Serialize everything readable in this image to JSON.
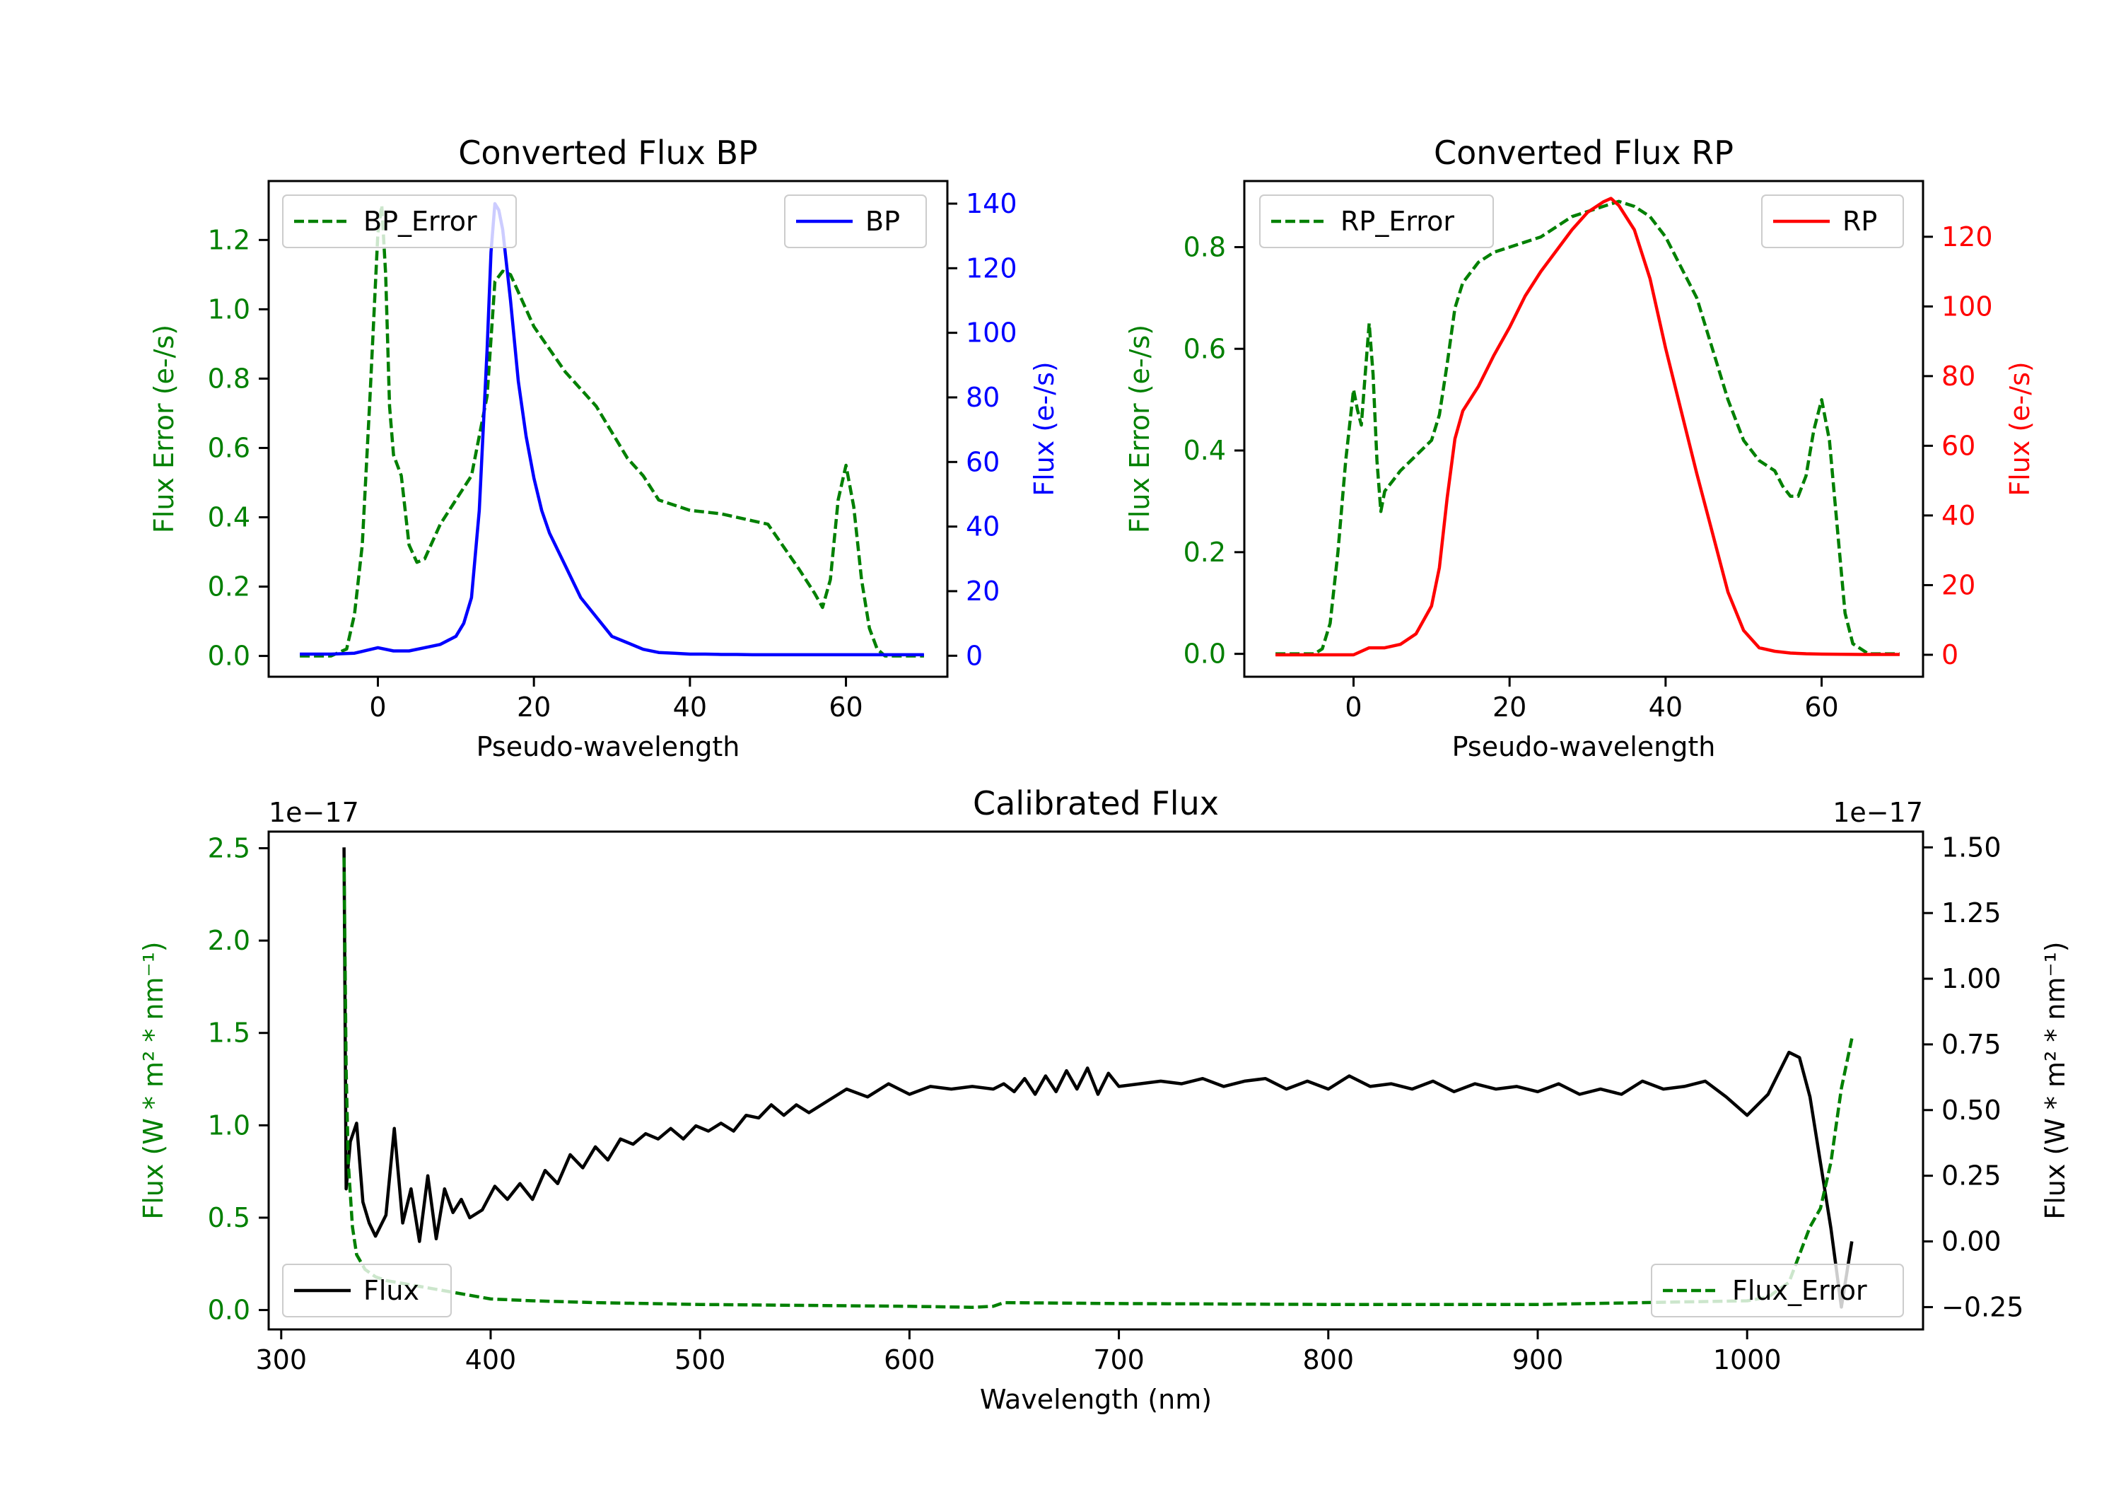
{
  "colors": {
    "green": "#008000",
    "blue": "#0000ff",
    "red": "#ff0000",
    "black": "#000000",
    "axis": "#000000"
  },
  "chart_data": [
    {
      "id": "bp",
      "type": "line",
      "title": "Converted Flux BP",
      "xlabel": "Pseudo-wavelength",
      "ylabel_left": "Flux Error (e-/s)",
      "ylabel_right": "Flux (e-/s)",
      "xlim": [
        -14,
        73
      ],
      "ylim_left": [
        -0.06,
        1.37
      ],
      "ylim_right": [
        -6.5,
        147
      ],
      "xticks": [
        0,
        20,
        40,
        60
      ],
      "yticks_left": [
        "0.0",
        "0.2",
        "0.4",
        "0.6",
        "0.8",
        "1.0",
        "1.2"
      ],
      "yticks_right": [
        "0",
        "20",
        "40",
        "60",
        "80",
        "100",
        "120",
        "140"
      ],
      "legend_left": "BP_Error",
      "legend_right": "BP",
      "series": [
        {
          "name": "BP_Error",
          "axis": "left",
          "style": "dashed",
          "color": "#008000",
          "x": [
            -10,
            -6,
            -4,
            -3,
            -2,
            -1,
            0,
            0.5,
            1,
            1.5,
            2,
            3,
            4,
            5,
            6,
            8,
            10,
            12,
            14,
            15,
            16,
            17,
            18,
            20,
            24,
            28,
            32,
            34,
            36,
            40,
            44,
            48,
            50,
            54,
            56,
            57,
            58,
            59,
            60,
            61,
            62,
            63,
            64,
            65,
            66,
            68,
            70
          ],
          "y": [
            0.0,
            0.0,
            0.02,
            0.12,
            0.32,
            0.75,
            1.22,
            1.3,
            1.1,
            0.72,
            0.58,
            0.52,
            0.32,
            0.27,
            0.28,
            0.38,
            0.45,
            0.52,
            0.75,
            1.08,
            1.11,
            1.1,
            1.05,
            0.95,
            0.82,
            0.72,
            0.57,
            0.52,
            0.45,
            0.42,
            0.41,
            0.39,
            0.38,
            0.25,
            0.18,
            0.14,
            0.22,
            0.45,
            0.55,
            0.43,
            0.22,
            0.08,
            0.02,
            0.0,
            0.0,
            0.0,
            0.0
          ]
        },
        {
          "name": "BP",
          "axis": "right",
          "style": "solid",
          "color": "#0000ff",
          "x": [
            -10,
            -6,
            -3,
            0,
            2,
            4,
            6,
            8,
            10,
            11,
            12,
            13,
            14,
            14.5,
            15,
            15.5,
            16,
            17,
            18,
            19,
            20,
            21,
            22,
            24,
            26,
            28,
            30,
            32,
            34,
            36,
            38,
            40,
            42,
            44,
            46,
            48,
            50,
            55,
            60,
            65,
            70
          ],
          "y": [
            0.5,
            0.5,
            0.8,
            2.5,
            1.5,
            1.5,
            2.5,
            3.5,
            6,
            10,
            18,
            45,
            95,
            125,
            140,
            138,
            132,
            110,
            85,
            68,
            55,
            45,
            38,
            28,
            18,
            12,
            6,
            4,
            2,
            1,
            0.8,
            0.5,
            0.5,
            0.4,
            0.4,
            0.3,
            0.3,
            0.3,
            0.3,
            0.3,
            0.3
          ]
        }
      ]
    },
    {
      "id": "rp",
      "type": "line",
      "title": "Converted Flux RP",
      "xlabel": "Pseudo-wavelength",
      "ylabel_left": "Flux Error (e-/s)",
      "ylabel_right": "Flux (e-/s)",
      "xlim": [
        -14,
        73
      ],
      "ylim_left": [
        -0.045,
        0.93
      ],
      "ylim_right": [
        -6.3,
        136
      ],
      "xticks": [
        0,
        20,
        40,
        60
      ],
      "yticks_left": [
        "0.0",
        "0.2",
        "0.4",
        "0.6",
        "0.8"
      ],
      "yticks_right": [
        "0",
        "20",
        "40",
        "60",
        "80",
        "100",
        "120"
      ],
      "legend_left": "RP_Error",
      "legend_right": "RP",
      "series": [
        {
          "name": "RP_Error",
          "axis": "left",
          "style": "dashed",
          "color": "#008000",
          "x": [
            -10,
            -5,
            -4,
            -3,
            -2,
            -1,
            0,
            0.5,
            1,
            1.5,
            2,
            2.5,
            3,
            3.5,
            4,
            5,
            6,
            8,
            10,
            11,
            12,
            13,
            14,
            16,
            18,
            20,
            22,
            24,
            26,
            28,
            30,
            32,
            34,
            36,
            38,
            40,
            42,
            44,
            46,
            48,
            50,
            52,
            54,
            55,
            56,
            57,
            58,
            59,
            60,
            61,
            62,
            63,
            64,
            66,
            68,
            70
          ],
          "y": [
            0.0,
            0.0,
            0.01,
            0.06,
            0.2,
            0.38,
            0.52,
            0.48,
            0.45,
            0.55,
            0.65,
            0.55,
            0.38,
            0.28,
            0.32,
            0.34,
            0.36,
            0.39,
            0.42,
            0.47,
            0.57,
            0.68,
            0.73,
            0.77,
            0.79,
            0.8,
            0.81,
            0.82,
            0.84,
            0.86,
            0.87,
            0.88,
            0.89,
            0.88,
            0.86,
            0.82,
            0.76,
            0.7,
            0.6,
            0.5,
            0.42,
            0.38,
            0.36,
            0.33,
            0.31,
            0.31,
            0.35,
            0.44,
            0.5,
            0.42,
            0.25,
            0.08,
            0.02,
            0.0,
            0.0,
            0.0
          ]
        },
        {
          "name": "RP",
          "axis": "right",
          "style": "solid",
          "color": "#ff0000",
          "x": [
            -10,
            -4,
            0,
            2,
            4,
            6,
            8,
            10,
            11,
            12,
            13,
            14,
            16,
            18,
            20,
            22,
            24,
            26,
            28,
            30,
            32,
            33,
            34,
            36,
            38,
            40,
            42,
            44,
            46,
            48,
            50,
            52,
            54,
            56,
            58,
            60,
            65,
            70
          ],
          "y": [
            0,
            0,
            0,
            2,
            2,
            3,
            6,
            14,
            25,
            45,
            62,
            70,
            77,
            86,
            94,
            103,
            110,
            116,
            122,
            127,
            130,
            131,
            129,
            122,
            108,
            88,
            70,
            52,
            35,
            18,
            7,
            2,
            1,
            0.5,
            0.3,
            0.2,
            0.1,
            0.1
          ]
        }
      ]
    },
    {
      "id": "calibrated",
      "type": "line",
      "title": "Calibrated Flux",
      "xlabel": "Wavelength (nm)",
      "ylabel_left": "Flux (W * m² * nm⁻¹)",
      "ylabel_right": "Flux (W * m² * nm⁻¹)",
      "offset_left": "1e−17",
      "offset_right": "1e−17",
      "xlim": [
        294,
        1084
      ],
      "ylim_left": [
        -0.105,
        2.59
      ],
      "ylim_right": [
        -0.335,
        1.56
      ],
      "xticks": [
        300,
        400,
        500,
        600,
        700,
        800,
        900,
        1000
      ],
      "yticks_left": [
        "0.0",
        "0.5",
        "1.0",
        "1.5",
        "2.0",
        "2.5"
      ],
      "yticks_right": [
        "−0.25",
        "0.00",
        "0.25",
        "0.50",
        "0.75",
        "1.00",
        "1.25",
        "1.50"
      ],
      "legend_left": "Flux",
      "legend_right": "Flux_Error",
      "series": [
        {
          "name": "Flux",
          "axis": "right",
          "style": "solid",
          "color": "#000000",
          "x": [
            330,
            331,
            333,
            336,
            339,
            342,
            345,
            350,
            354,
            358,
            362,
            366,
            370,
            374,
            378,
            382,
            386,
            390,
            396,
            402,
            408,
            414,
            420,
            426,
            432,
            438,
            444,
            450,
            456,
            462,
            468,
            474,
            480,
            486,
            492,
            498,
            504,
            510,
            516,
            522,
            528,
            534,
            540,
            546,
            552,
            560,
            570,
            580,
            590,
            600,
            610,
            620,
            630,
            640,
            645,
            650,
            655,
            660,
            665,
            670,
            675,
            680,
            685,
            690,
            695,
            700,
            710,
            720,
            730,
            740,
            750,
            760,
            770,
            780,
            790,
            800,
            810,
            820,
            830,
            840,
            850,
            860,
            870,
            880,
            890,
            900,
            910,
            920,
            930,
            940,
            950,
            960,
            970,
            980,
            990,
            1000,
            1010,
            1020,
            1025,
            1030,
            1035,
            1040,
            1045,
            1050
          ],
          "y": [
            1.5,
            0.2,
            0.38,
            0.45,
            0.15,
            0.07,
            0.02,
            0.1,
            0.43,
            0.07,
            0.2,
            0.0,
            0.25,
            0.01,
            0.2,
            0.11,
            0.16,
            0.09,
            0.12,
            0.21,
            0.16,
            0.22,
            0.16,
            0.27,
            0.22,
            0.33,
            0.28,
            0.36,
            0.31,
            0.39,
            0.37,
            0.41,
            0.39,
            0.43,
            0.39,
            0.44,
            0.42,
            0.45,
            0.42,
            0.48,
            0.47,
            0.52,
            0.48,
            0.52,
            0.49,
            0.53,
            0.58,
            0.55,
            0.6,
            0.56,
            0.59,
            0.58,
            0.59,
            0.58,
            0.6,
            0.57,
            0.62,
            0.56,
            0.63,
            0.57,
            0.65,
            0.58,
            0.66,
            0.56,
            0.64,
            0.59,
            0.6,
            0.61,
            0.6,
            0.62,
            0.59,
            0.61,
            0.62,
            0.58,
            0.61,
            0.58,
            0.63,
            0.59,
            0.6,
            0.58,
            0.61,
            0.57,
            0.6,
            0.58,
            0.59,
            0.57,
            0.6,
            0.56,
            0.58,
            0.56,
            0.61,
            0.58,
            0.59,
            0.61,
            0.55,
            0.48,
            0.56,
            0.72,
            0.7,
            0.55,
            0.3,
            0.05,
            -0.25,
            0.0
          ]
        },
        {
          "name": "Flux_Error",
          "axis": "left",
          "style": "dashed",
          "color": "#008000",
          "x": [
            330,
            331,
            332,
            334,
            336,
            340,
            345,
            350,
            360,
            370,
            380,
            390,
            400,
            420,
            450,
            500,
            550,
            600,
            630,
            640,
            645,
            700,
            800,
            900,
            1000,
            1010,
            1020,
            1025,
            1030,
            1035,
            1040,
            1045,
            1050
          ],
          "y": [
            2.45,
            1.3,
            0.8,
            0.45,
            0.3,
            0.22,
            0.18,
            0.16,
            0.14,
            0.12,
            0.1,
            0.08,
            0.06,
            0.05,
            0.04,
            0.03,
            0.025,
            0.02,
            0.015,
            0.02,
            0.04,
            0.035,
            0.03,
            0.03,
            0.05,
            0.07,
            0.15,
            0.3,
            0.45,
            0.55,
            0.8,
            1.2,
            1.47
          ]
        }
      ]
    }
  ]
}
